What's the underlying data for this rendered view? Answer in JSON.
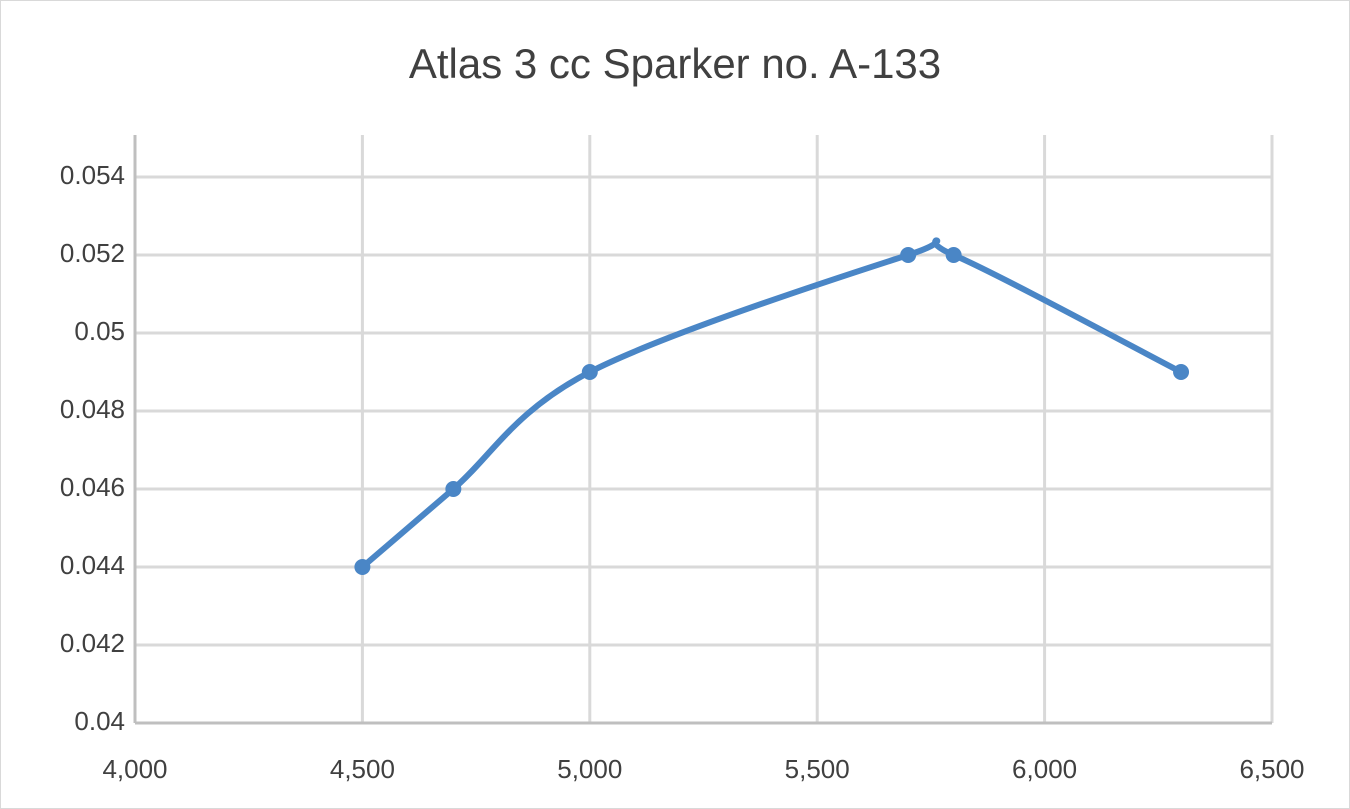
{
  "chart_data": {
    "type": "line",
    "title": "Atlas 3 cc Sparker no. A-133",
    "x": [
      4500,
      4700,
      5000,
      5700,
      5800,
      6300
    ],
    "series": [
      {
        "color": "#4a86c6",
        "values": [
          0.044,
          0.046,
          0.049,
          0.052,
          0.052,
          0.049
        ]
      }
    ],
    "smooth": true,
    "xlim": [
      4000,
      6500
    ],
    "xticks": [
      {
        "value": 4000,
        "label": "4,000"
      },
      {
        "value": 4500,
        "label": "4,500"
      },
      {
        "value": 5000,
        "label": "5,000"
      },
      {
        "value": 5500,
        "label": "5,500"
      },
      {
        "value": 6000,
        "label": "6,000"
      },
      {
        "value": 6500,
        "label": "6,500"
      }
    ],
    "ylim": [
      0.04,
      0.055
    ],
    "yticks": [
      0.04,
      0.042,
      0.044,
      0.046,
      0.048,
      0.05,
      0.052,
      0.054
    ],
    "grid": true
  }
}
